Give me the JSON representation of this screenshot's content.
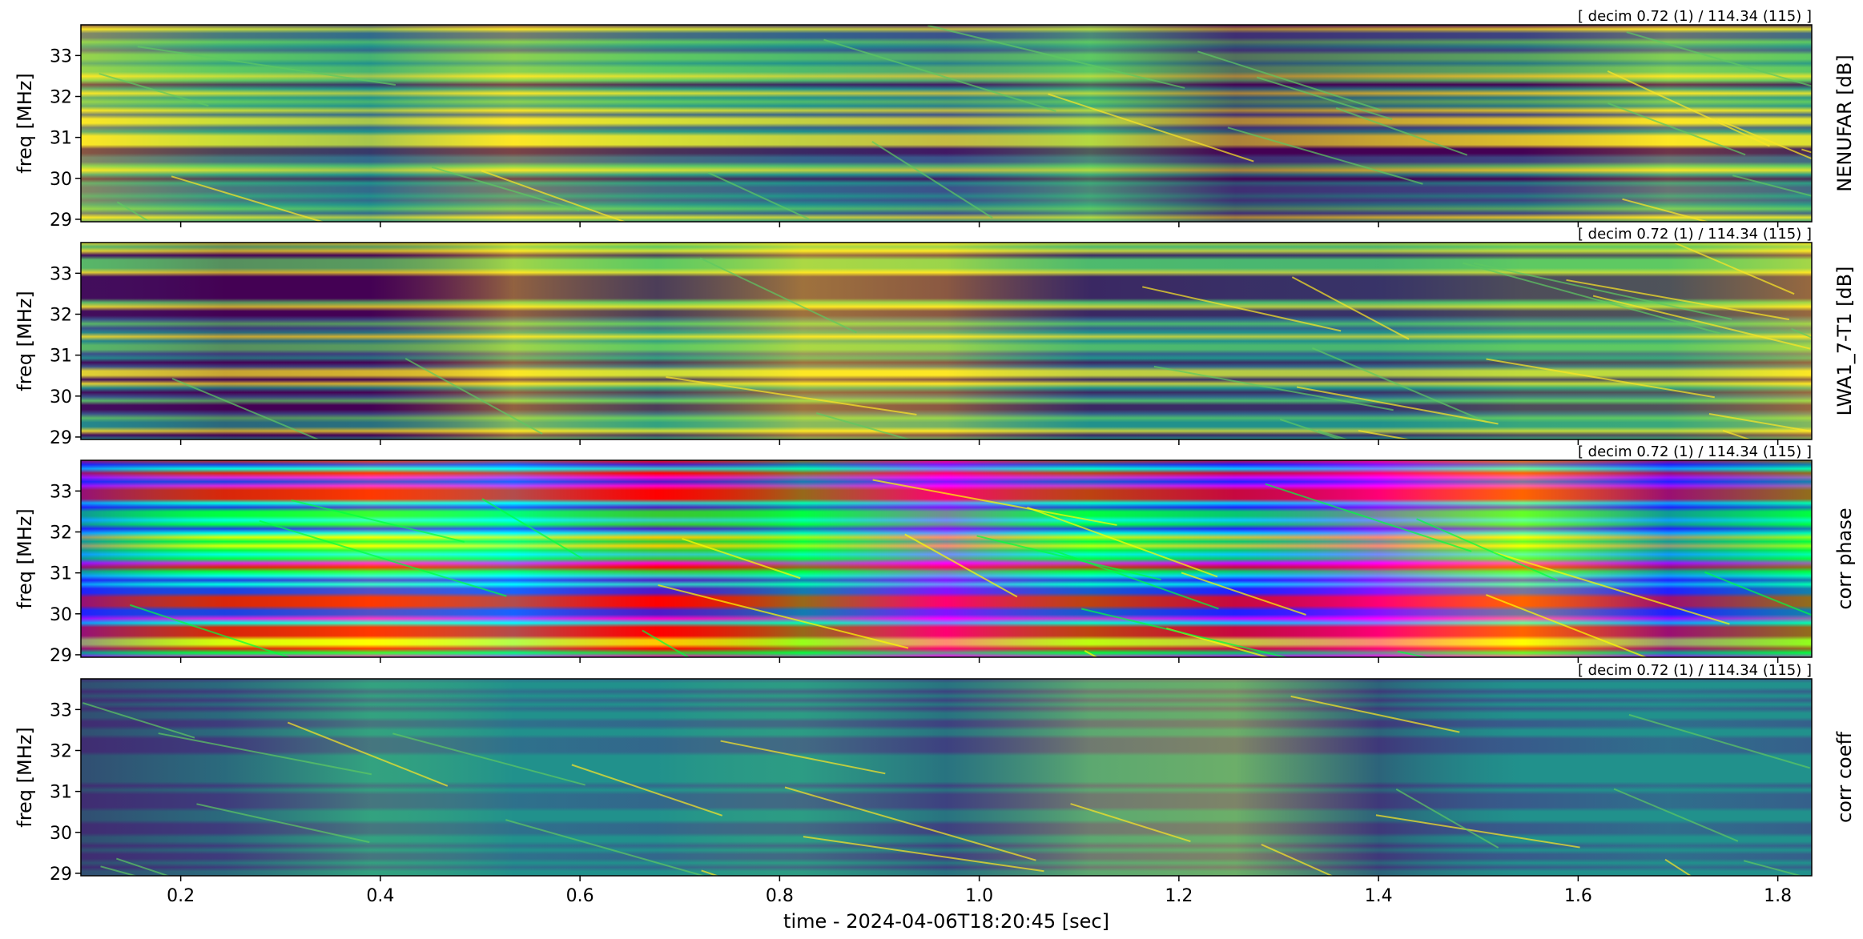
{
  "chart_data": [
    {
      "type": "heatmap",
      "colormap": "viridis",
      "annotation": "[ decim 0.72 (1) / 114.34 (115) ]",
      "ylabel": "freq [MHz]",
      "colorbar_label": "NENUFAR [dB]",
      "xlim": [
        0.1,
        1.834
      ],
      "ylim": [
        28.94,
        33.75
      ],
      "yticks": [
        29,
        30,
        31,
        32,
        33
      ]
    },
    {
      "type": "heatmap",
      "colormap": "viridis",
      "annotation": "[ decim 0.72 (1) / 114.34 (115) ]",
      "ylabel": "freq [MHz]",
      "colorbar_label": "LWA1_7-T1 [dB]",
      "xlim": [
        0.1,
        1.834
      ],
      "ylim": [
        28.94,
        33.75
      ],
      "yticks": [
        29,
        30,
        31,
        32,
        33
      ]
    },
    {
      "type": "heatmap",
      "colormap": "hsv",
      "annotation": "[ decim 0.72 (1) / 114.34 (115) ]",
      "ylabel": "freq [MHz]",
      "colorbar_label": "corr phase",
      "xlim": [
        0.1,
        1.834
      ],
      "ylim": [
        28.94,
        33.75
      ],
      "yticks": [
        29,
        30,
        31,
        32,
        33
      ]
    },
    {
      "type": "heatmap",
      "colormap": "viridis",
      "annotation": "[ decim 0.72 (1) / 114.34 (115) ]",
      "ylabel": "freq [MHz]",
      "colorbar_label": "corr coeff",
      "xlim": [
        0.1,
        1.834
      ],
      "ylim": [
        28.94,
        33.75
      ],
      "yticks": [
        29,
        30,
        31,
        32,
        33
      ],
      "xlabel": "time - 2024-04-06T18:20:45 [sec]",
      "xticks": [
        0.2,
        0.4,
        0.6,
        0.8,
        {
          "value": 1,
          "label": "1.0"
        },
        1.2,
        1.4,
        1.6,
        1.8
      ]
    }
  ]
}
